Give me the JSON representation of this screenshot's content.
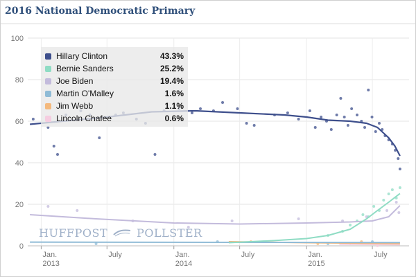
{
  "header": {
    "title": "2016 National Democratic Primary"
  },
  "chart_data": {
    "type": "line",
    "title": "2016 National Democratic Primary",
    "xlabel": "",
    "ylabel": "",
    "ylim": [
      0,
      100
    ],
    "yticks": [
      0,
      20,
      40,
      60,
      80,
      100
    ],
    "xlim": [
      "2012-11-25",
      "2015-10-10"
    ],
    "xticks": [
      {
        "date": "2013-01-01",
        "label": [
          "Jan.",
          "2013"
        ]
      },
      {
        "date": "2013-07-01",
        "label": [
          "July"
        ]
      },
      {
        "date": "2014-01-01",
        "label": [
          "Jan.",
          "2014"
        ]
      },
      {
        "date": "2014-07-01",
        "label": [
          "July"
        ]
      },
      {
        "date": "2015-01-01",
        "label": [
          "Jan.",
          "2015"
        ]
      },
      {
        "date": "2015-07-01",
        "label": [
          "July"
        ]
      }
    ],
    "grid": true,
    "legend_position": "top-left",
    "series": [
      {
        "name": "Hillary Clinton",
        "value_label": "43.3%",
        "color": "#3e4f8c",
        "trend": [
          [
            "2012-12-01",
            58.5
          ],
          [
            "2013-03-01",
            60
          ],
          [
            "2013-07-01",
            62
          ],
          [
            "2013-11-01",
            64.5
          ],
          [
            "2014-03-01",
            65
          ],
          [
            "2014-07-01",
            64
          ],
          [
            "2014-11-01",
            63
          ],
          [
            "2015-01-01",
            62
          ],
          [
            "2015-03-01",
            60.5
          ],
          [
            "2015-05-01",
            60
          ],
          [
            "2015-06-15",
            59
          ],
          [
            "2015-07-15",
            57
          ],
          [
            "2015-08-15",
            52
          ],
          [
            "2015-09-01",
            48
          ],
          [
            "2015-09-15",
            43.3
          ]
        ],
        "polls": [
          [
            "2012-12-10",
            61
          ],
          [
            "2013-01-20",
            57
          ],
          [
            "2013-02-05",
            48
          ],
          [
            "2013-02-15",
            44
          ],
          [
            "2013-03-10",
            63
          ],
          [
            "2013-04-20",
            65
          ],
          [
            "2013-05-15",
            63
          ],
          [
            "2013-06-10",
            52
          ],
          [
            "2013-07-25",
            63
          ],
          [
            "2013-08-15",
            64
          ],
          [
            "2013-09-20",
            61
          ],
          [
            "2013-10-15",
            59
          ],
          [
            "2013-11-10",
            44
          ],
          [
            "2013-12-05",
            65
          ],
          [
            "2014-01-15",
            66
          ],
          [
            "2014-02-20",
            64
          ],
          [
            "2014-03-15",
            66
          ],
          [
            "2014-04-20",
            65
          ],
          [
            "2014-05-15",
            69
          ],
          [
            "2014-06-25",
            66
          ],
          [
            "2014-07-20",
            59
          ],
          [
            "2014-08-10",
            58
          ],
          [
            "2014-10-05",
            63
          ],
          [
            "2014-11-10",
            64
          ],
          [
            "2014-12-10",
            61
          ],
          [
            "2015-01-10",
            65
          ],
          [
            "2015-01-25",
            57
          ],
          [
            "2015-02-10",
            62
          ],
          [
            "2015-02-25",
            60
          ],
          [
            "2015-03-10",
            56
          ],
          [
            "2015-03-25",
            63
          ],
          [
            "2015-04-05",
            71
          ],
          [
            "2015-04-15",
            62
          ],
          [
            "2015-04-25",
            58
          ],
          [
            "2015-05-05",
            66
          ],
          [
            "2015-05-20",
            63
          ],
          [
            "2015-06-01",
            60
          ],
          [
            "2015-06-10",
            57
          ],
          [
            "2015-06-20",
            75
          ],
          [
            "2015-06-30",
            62
          ],
          [
            "2015-07-10",
            55
          ],
          [
            "2015-07-20",
            59
          ],
          [
            "2015-07-28",
            56
          ],
          [
            "2015-08-05",
            53
          ],
          [
            "2015-08-15",
            51
          ],
          [
            "2015-08-25",
            49
          ],
          [
            "2015-09-02",
            46
          ],
          [
            "2015-09-10",
            42
          ],
          [
            "2015-09-15",
            37
          ]
        ]
      },
      {
        "name": "Bernie Sanders",
        "value_label": "25.2%",
        "color": "#8fdcc4",
        "trend": [
          [
            "2014-06-01",
            1.5
          ],
          [
            "2014-10-01",
            2.5
          ],
          [
            "2015-01-01",
            3.5
          ],
          [
            "2015-03-01",
            5
          ],
          [
            "2015-05-01",
            8
          ],
          [
            "2015-06-15",
            13
          ],
          [
            "2015-07-15",
            17
          ],
          [
            "2015-08-15",
            21
          ],
          [
            "2015-09-15",
            25.2
          ]
        ],
        "polls": [
          [
            "2015-03-01",
            5
          ],
          [
            "2015-04-10",
            7
          ],
          [
            "2015-05-01",
            10
          ],
          [
            "2015-05-20",
            12
          ],
          [
            "2015-06-05",
            15
          ],
          [
            "2015-06-20",
            14
          ],
          [
            "2015-07-05",
            19
          ],
          [
            "2015-07-20",
            17
          ],
          [
            "2015-08-01",
            22
          ],
          [
            "2015-08-15",
            25
          ],
          [
            "2015-08-25",
            27
          ],
          [
            "2015-09-05",
            23
          ],
          [
            "2015-09-15",
            28
          ]
        ]
      },
      {
        "name": "Joe Biden",
        "value_label": "19.4%",
        "color": "#c3bbdc",
        "trend": [
          [
            "2012-12-01",
            15
          ],
          [
            "2013-06-01",
            13
          ],
          [
            "2014-01-01",
            11
          ],
          [
            "2014-07-01",
            10.5
          ],
          [
            "2015-01-01",
            11
          ],
          [
            "2015-05-01",
            11.5
          ],
          [
            "2015-07-01",
            12
          ],
          [
            "2015-08-15",
            14
          ],
          [
            "2015-09-15",
            19.4
          ]
        ],
        "polls": [
          [
            "2013-01-20",
            19
          ],
          [
            "2013-04-10",
            17
          ],
          [
            "2013-09-10",
            12
          ],
          [
            "2014-02-10",
            9
          ],
          [
            "2014-06-10",
            12
          ],
          [
            "2014-12-10",
            13
          ],
          [
            "2015-04-10",
            12
          ],
          [
            "2015-06-15",
            14
          ],
          [
            "2015-08-10",
            17
          ],
          [
            "2015-09-05",
            21
          ],
          [
            "2015-09-12",
            16
          ]
        ]
      },
      {
        "name": "Martin O'Malley",
        "value_label": "1.6%",
        "color": "#8fbbd6",
        "trend": [
          [
            "2012-12-01",
            1.8
          ],
          [
            "2015-09-15",
            1.6
          ]
        ],
        "polls": [
          [
            "2013-06-01",
            1
          ],
          [
            "2014-05-01",
            2
          ],
          [
            "2015-03-01",
            1
          ],
          [
            "2015-07-01",
            2
          ],
          [
            "2015-09-01",
            1
          ]
        ]
      },
      {
        "name": "Jim Webb",
        "value_label": "1.1%",
        "color": "#f4b97d",
        "trend": [
          [
            "2014-06-01",
            2
          ],
          [
            "2015-01-01",
            1.5
          ],
          [
            "2015-09-15",
            1.1
          ]
        ],
        "polls": [
          [
            "2014-08-01",
            2
          ],
          [
            "2015-02-01",
            1
          ],
          [
            "2015-06-01",
            2
          ],
          [
            "2015-08-01",
            1
          ]
        ]
      },
      {
        "name": "Lincoln Chafee",
        "value_label": "0.6%",
        "color": "#f5cde0",
        "trend": [
          [
            "2015-04-01",
            0.8
          ],
          [
            "2015-09-15",
            0.6
          ]
        ],
        "polls": [
          [
            "2015-05-01",
            1
          ],
          [
            "2015-07-15",
            0
          ],
          [
            "2015-09-01",
            1
          ]
        ]
      }
    ],
    "watermark": {
      "left": "HUFFPOST",
      "right": "POLLSTER",
      "logo_icon": "pollster-swoosh-icon"
    }
  }
}
